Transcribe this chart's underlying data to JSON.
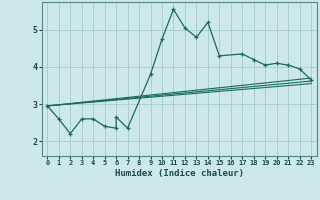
{
  "xlabel": "Humidex (Indice chaleur)",
  "line_color": "#1a6b5a",
  "bg_color": "#cce8e8",
  "grid_color": "#aacfcf",
  "xlim": [
    -0.5,
    23.5
  ],
  "ylim": [
    1.6,
    5.75
  ],
  "yticks": [
    2,
    3,
    4,
    5
  ],
  "xticks": [
    0,
    1,
    2,
    3,
    4,
    5,
    6,
    7,
    8,
    9,
    10,
    11,
    12,
    13,
    14,
    15,
    16,
    17,
    18,
    19,
    20,
    21,
    22,
    23
  ],
  "main_x": [
    0,
    1,
    2,
    3,
    4,
    5,
    6,
    6,
    7,
    9,
    10,
    11,
    12,
    13,
    14,
    15,
    17,
    18,
    19,
    20,
    21,
    22,
    23
  ],
  "main_y": [
    2.95,
    2.6,
    2.2,
    2.6,
    2.6,
    2.4,
    2.35,
    2.65,
    2.35,
    3.8,
    4.75,
    5.55,
    5.05,
    4.8,
    5.2,
    4.3,
    4.35,
    4.2,
    4.05,
    4.1,
    4.05,
    3.95,
    3.65
  ],
  "line1_x": [
    0,
    23
  ],
  "line1_y": [
    2.95,
    3.7
  ],
  "line2_x": [
    0,
    23
  ],
  "line2_y": [
    2.95,
    3.55
  ],
  "line3_x": [
    0,
    23
  ],
  "line3_y": [
    2.95,
    3.62
  ]
}
